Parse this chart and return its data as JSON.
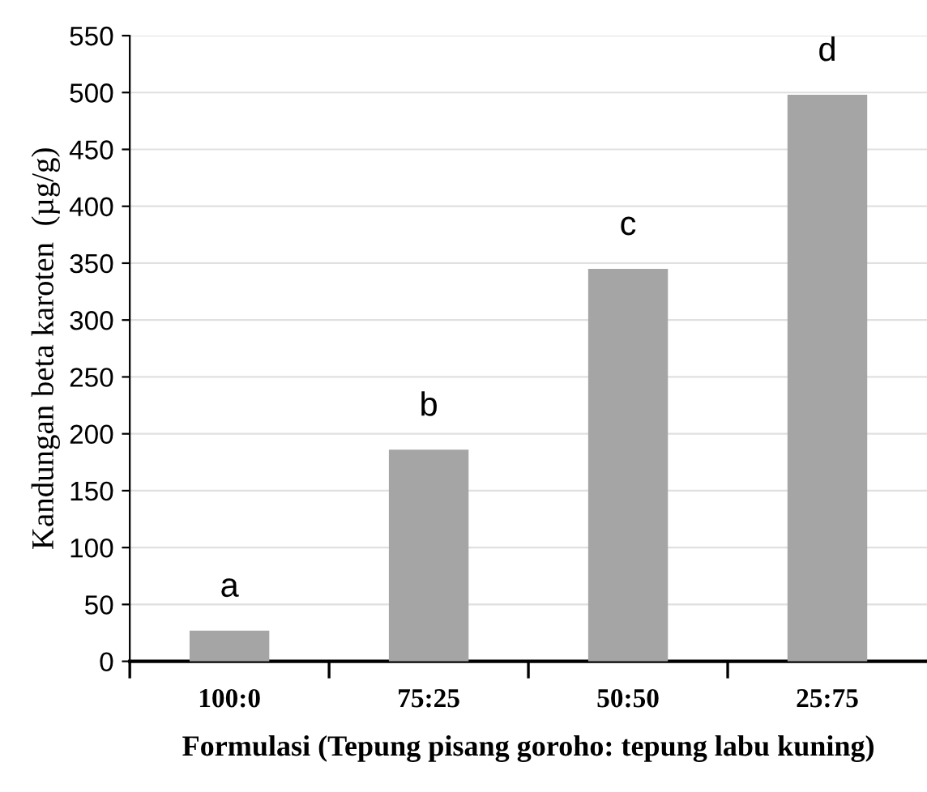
{
  "chart_data": {
    "type": "bar",
    "xlabel": "Formulasi (Tepung pisang goroho: tepung labu kuning)",
    "ylabel": "Kandungan beta karoten  (µg/g)",
    "categories": [
      "100:0",
      "75:25",
      "50:50",
      "25:75"
    ],
    "values": [
      27,
      186,
      345,
      498
    ],
    "color": "#a5a5a5",
    "ylim": [
      0,
      550
    ],
    "yticks": [
      0,
      50,
      100,
      150,
      200,
      250,
      300,
      350,
      400,
      450,
      500,
      550
    ],
    "grid": "y",
    "annotations": [
      {
        "text": "a",
        "x": "100:0",
        "y": 27
      },
      {
        "text": "b",
        "x": "75:25",
        "y": 186
      },
      {
        "text": "c",
        "x": "50:50",
        "y": 345
      },
      {
        "text": "d",
        "x": "25:75",
        "y": 498
      }
    ]
  }
}
